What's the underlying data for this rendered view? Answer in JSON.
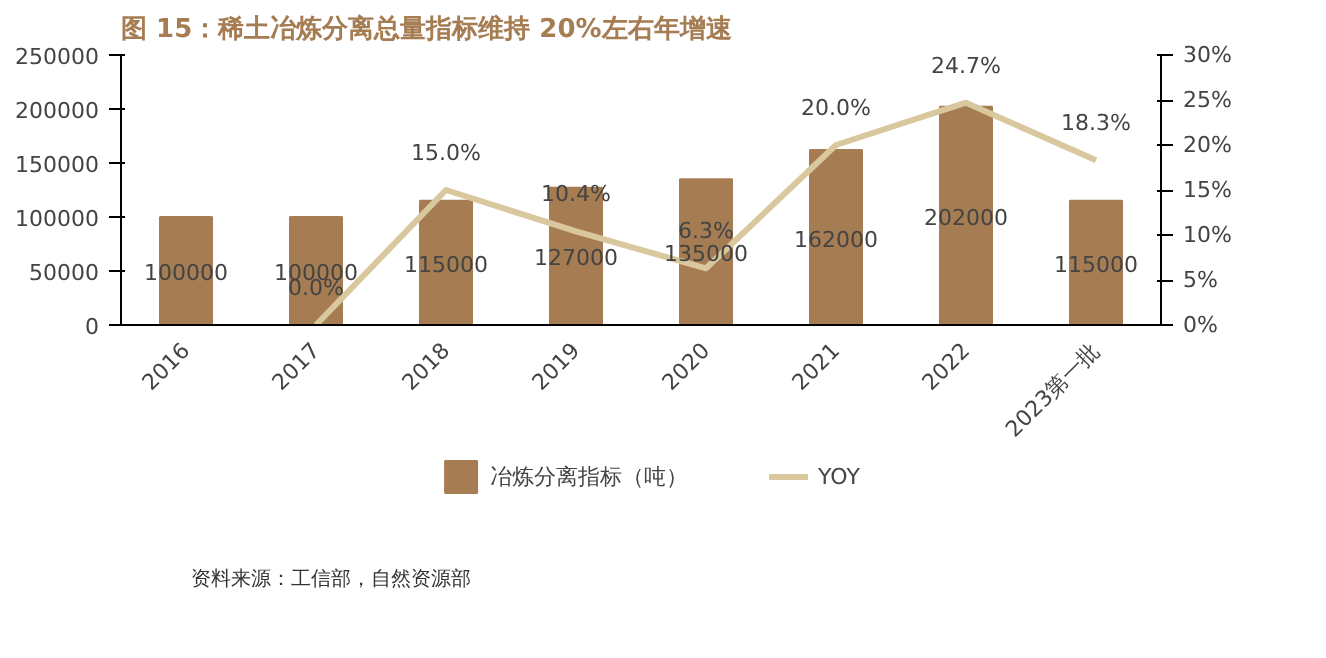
{
  "chart_data": {
    "type": "bar",
    "title": "图 15：稀土冶炼分离总量指标维持 20%左右年增速",
    "categories": [
      "2016",
      "2017",
      "2018",
      "2019",
      "2020",
      "2021",
      "2022",
      "2023第一批"
    ],
    "series": [
      {
        "name": "冶炼分离指标（吨）",
        "color": "#a67c52",
        "values": [
          100000,
          100000,
          115000,
          127000,
          135000,
          162000,
          202000,
          115000
        ]
      },
      {
        "name": "YOY",
        "type": "line",
        "axis": "y2",
        "color": "#d9c79e",
        "values": [
          null,
          0.0,
          15.0,
          10.4,
          6.3,
          20.0,
          24.7,
          18.3
        ],
        "value_labels": [
          null,
          "0.0%",
          "15.0%",
          "10.4%",
          "6.3%",
          "20.0%",
          "24.7%",
          "18.3%"
        ]
      }
    ],
    "ylim": [
      0,
      250000
    ],
    "yticks": [
      0,
      50000,
      100000,
      150000,
      200000,
      250000
    ],
    "y2lim": [
      0,
      30
    ],
    "y2ticks": [
      {
        "value": 0,
        "label": "0%"
      },
      {
        "value": 5,
        "label": "5%"
      },
      {
        "value": 10,
        "label": "10%"
      },
      {
        "value": 15,
        "label": "15%"
      },
      {
        "value": 20,
        "label": "20%"
      },
      {
        "value": 25,
        "label": "25%"
      },
      {
        "value": 30,
        "label": "30%"
      }
    ],
    "data_labels": true,
    "grid": false,
    "legend": "bottom",
    "annotations": [
      "资料来源：工信部，自然资源部"
    ]
  }
}
